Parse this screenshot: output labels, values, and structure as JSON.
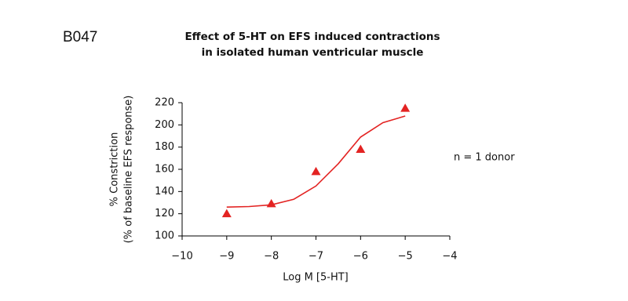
{
  "chart_data": {
    "type": "scatter",
    "panel_label": "B047",
    "title": [
      "Effect of 5-HT on EFS induced contractions",
      "in isolated human ventricular muscle"
    ],
    "x_label": "Log M [5-HT]",
    "y_label": [
      "% Constriction",
      "(% of baseline EFS response)"
    ],
    "annotation": "n = 1 donor",
    "xlim": [
      -10,
      -4
    ],
    "xticks": [
      {
        "value": -10,
        "label": "−10"
      },
      {
        "value": -9,
        "label": "−9"
      },
      {
        "value": -8,
        "label": "−8"
      },
      {
        "value": -7,
        "label": "−7"
      },
      {
        "value": -6,
        "label": "−6"
      },
      {
        "value": -5,
        "label": "−5"
      },
      {
        "value": -4,
        "label": "−4"
      }
    ],
    "ylim": [
      100,
      220
    ],
    "yticks": [
      100,
      120,
      140,
      160,
      180,
      200,
      220
    ],
    "grid": false,
    "series": [
      {
        "style": "markers",
        "marker": "triangle",
        "color": "#e32322",
        "x": [
          -9,
          -8,
          -7,
          -6,
          -5
        ],
        "values": [
          120,
          129,
          158,
          178,
          215
        ]
      },
      {
        "style": "line",
        "color": "#e32322",
        "x": [
          -9,
          -8.5,
          -8,
          -7.5,
          -7,
          -6.5,
          -6,
          -5.5,
          -5
        ],
        "values": [
          126,
          126.5,
          128,
          133,
          145,
          165,
          189,
          202,
          208
        ]
      }
    ]
  }
}
